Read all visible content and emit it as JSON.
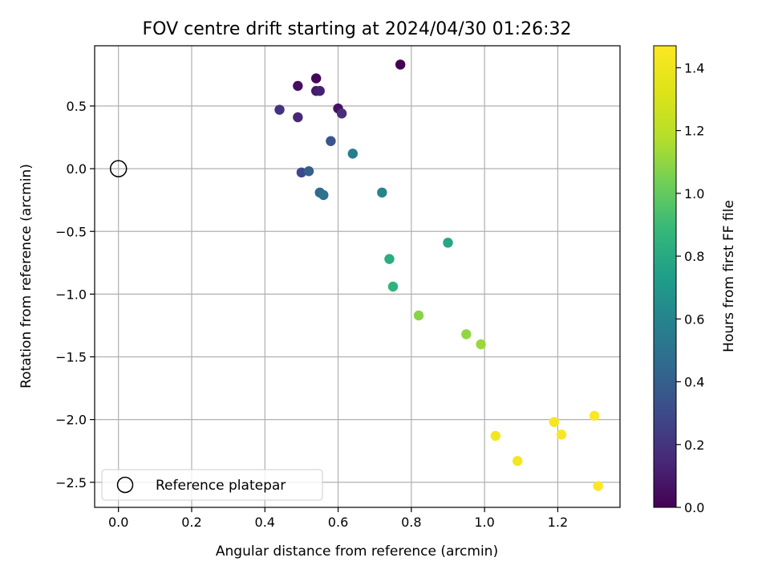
{
  "chart_data": {
    "type": "scatter",
    "title": "FOV centre drift starting at 2024/04/30 01:26:32",
    "xlabel": "Angular distance from reference (arcmin)",
    "ylabel": "Rotation from reference (arcmin)",
    "xlim": [
      -0.065,
      1.37
    ],
    "ylim": [
      -2.7,
      0.98
    ],
    "xticks": [
      "0.0",
      "0.2",
      "0.4",
      "0.6",
      "0.8",
      "1.0",
      "1.2"
    ],
    "yticks": [
      "0.5",
      "0.0",
      "−0.5",
      "−1.0",
      "−1.5",
      "−2.0",
      "−2.5"
    ],
    "grid": true,
    "legend": {
      "placement": "lower-left",
      "entries": [
        "Reference platepar"
      ]
    },
    "reference_point": {
      "x": 0.0,
      "y": 0.0,
      "name": "Reference platepar"
    },
    "colorbar": {
      "label": "Hours from first FF file",
      "range": [
        0.0,
        1.47
      ],
      "ticks": [
        "0.0",
        "0.2",
        "0.4",
        "0.6",
        "0.8",
        "1.0",
        "1.2",
        "1.4"
      ],
      "colormap": "viridis"
    },
    "points": [
      {
        "x": 0.77,
        "y": 0.83,
        "t": 0.0
      },
      {
        "x": 0.54,
        "y": 0.72,
        "t": 0.02
      },
      {
        "x": 0.49,
        "y": 0.66,
        "t": 0.05
      },
      {
        "x": 0.6,
        "y": 0.48,
        "t": 0.06
      },
      {
        "x": 0.54,
        "y": 0.62,
        "t": 0.09
      },
      {
        "x": 0.55,
        "y": 0.62,
        "t": 0.12
      },
      {
        "x": 0.49,
        "y": 0.41,
        "t": 0.15
      },
      {
        "x": 0.61,
        "y": 0.44,
        "t": 0.18
      },
      {
        "x": 0.44,
        "y": 0.47,
        "t": 0.2
      },
      {
        "x": 0.5,
        "y": -0.03,
        "t": 0.3
      },
      {
        "x": 0.58,
        "y": 0.22,
        "t": 0.35
      },
      {
        "x": 0.52,
        "y": -0.02,
        "t": 0.4
      },
      {
        "x": 0.55,
        "y": -0.19,
        "t": 0.45
      },
      {
        "x": 0.56,
        "y": -0.21,
        "t": 0.5
      },
      {
        "x": 0.64,
        "y": 0.12,
        "t": 0.55
      },
      {
        "x": 0.72,
        "y": -0.19,
        "t": 0.6
      },
      {
        "x": 0.9,
        "y": -0.59,
        "t": 0.78
      },
      {
        "x": 0.74,
        "y": -0.72,
        "t": 0.82
      },
      {
        "x": 0.75,
        "y": -0.94,
        "t": 0.85
      },
      {
        "x": 0.82,
        "y": -1.17,
        "t": 1.08
      },
      {
        "x": 0.95,
        "y": -1.32,
        "t": 1.1
      },
      {
        "x": 0.99,
        "y": -1.4,
        "t": 1.12
      },
      {
        "x": 1.03,
        "y": -2.13,
        "t": 1.42
      },
      {
        "x": 1.09,
        "y": -2.33,
        "t": 1.43
      },
      {
        "x": 1.19,
        "y": -2.02,
        "t": 1.44
      },
      {
        "x": 1.21,
        "y": -2.12,
        "t": 1.45
      },
      {
        "x": 1.3,
        "y": -1.97,
        "t": 1.46
      },
      {
        "x": 1.31,
        "y": -2.53,
        "t": 1.47
      }
    ]
  }
}
